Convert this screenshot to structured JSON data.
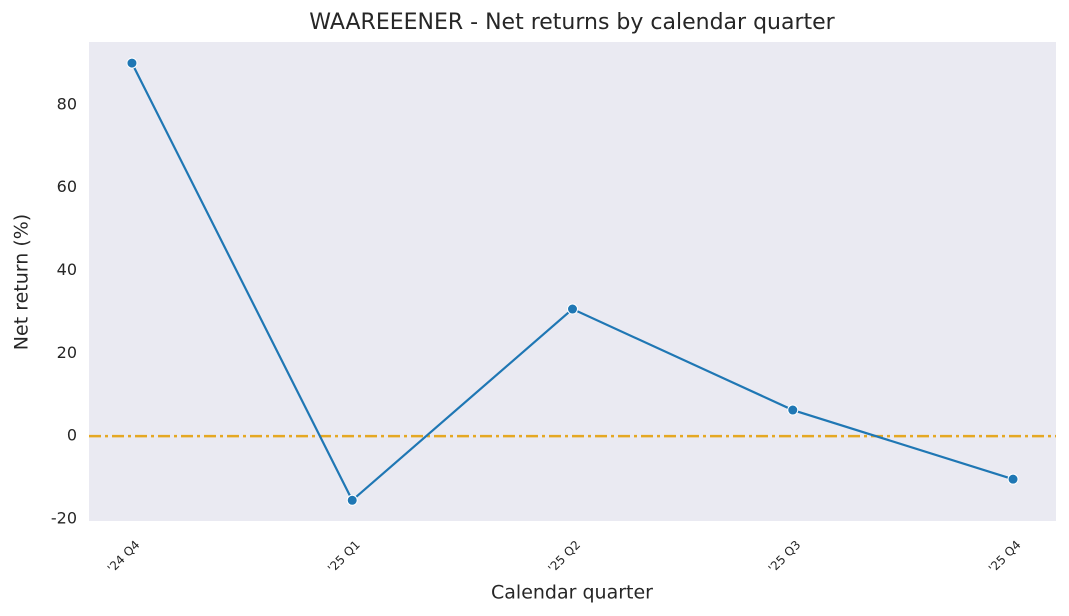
{
  "chart_data": {
    "type": "line",
    "title": "WAAREEENER - Net returns by calendar quarter",
    "xlabel": "Calendar quarter",
    "ylabel": "Net return (%)",
    "categories": [
      "'24 Q4",
      "'25 Q1",
      "'25 Q2",
      "'25 Q3",
      "'25 Q4"
    ],
    "series": [
      {
        "name": "Net return",
        "color": "#1f77b4",
        "values": [
          90.1,
          -15.5,
          30.7,
          6.3,
          -10.4
        ]
      }
    ],
    "ylim": [
      -20.5,
      95.2
    ],
    "yticks": [
      -20,
      0,
      20,
      40,
      60,
      80
    ],
    "grid": false,
    "background": "#eaeaf2",
    "hline": {
      "y": 0,
      "color": "#e5a823",
      "style": "dashdot"
    }
  }
}
